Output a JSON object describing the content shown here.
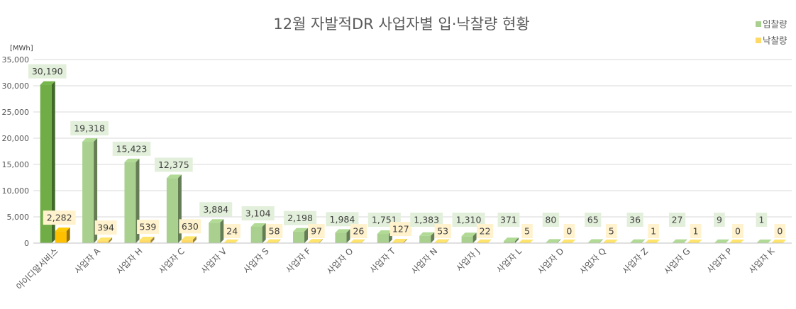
{
  "colors": {
    "bid": "#a9d08e",
    "bid_highlight": "#70ad47",
    "award": "#ffd966",
    "award_highlight": "#ffc000",
    "grid": "#d9d9d9",
    "label_bid_bg": "#e2efda",
    "label_award_bg": "#fff2cc"
  },
  "chart_data": {
    "type": "bar",
    "title": "12월 자발적DR 사업자별 입·낙찰량 현황",
    "ylabel": "[MWh]",
    "ylim": [
      0,
      35000
    ],
    "yticks": [
      "0",
      "5,000",
      "10,000",
      "15,000",
      "20,000",
      "25,000",
      "30,000",
      "35,000"
    ],
    "grid": true,
    "legend_position": "top-right",
    "categories": [
      "아이디알서비스",
      "사업자 A",
      "사업자 H",
      "사업자 C",
      "사업자 V",
      "사업자 S",
      "사업자 F",
      "사업자 O",
      "사업자 T",
      "사업자 N",
      "사업자 J",
      "사업자 L",
      "사업자 D",
      "사업자 Q",
      "사업자 Z",
      "사업자 G",
      "사업자 P",
      "사업자 K"
    ],
    "series": [
      {
        "name": "입찰량",
        "values": [
          30190,
          19318,
          15423,
          12375,
          3884,
          3104,
          2198,
          1984,
          1751,
          1383,
          1310,
          371,
          80,
          65,
          36,
          27,
          9,
          1
        ],
        "labels": [
          "30,190",
          "19,318",
          "15,423",
          "12,375",
          "3,884",
          "3,104",
          "2,198",
          "1,984",
          "1,751",
          "1,383",
          "1,310",
          "371",
          "80",
          "65",
          "36",
          "27",
          "9",
          "1"
        ]
      },
      {
        "name": "낙찰량",
        "values": [
          2282,
          394,
          539,
          630,
          24,
          58,
          97,
          26,
          127,
          53,
          22,
          5,
          0,
          5,
          1,
          1,
          0,
          0
        ],
        "labels": [
          "2,282",
          "394",
          "539",
          "630",
          "24",
          "58",
          "97",
          "26",
          "127",
          "53",
          "22",
          "5",
          "0",
          "5",
          "1",
          "1",
          "0",
          "0"
        ]
      }
    ]
  }
}
